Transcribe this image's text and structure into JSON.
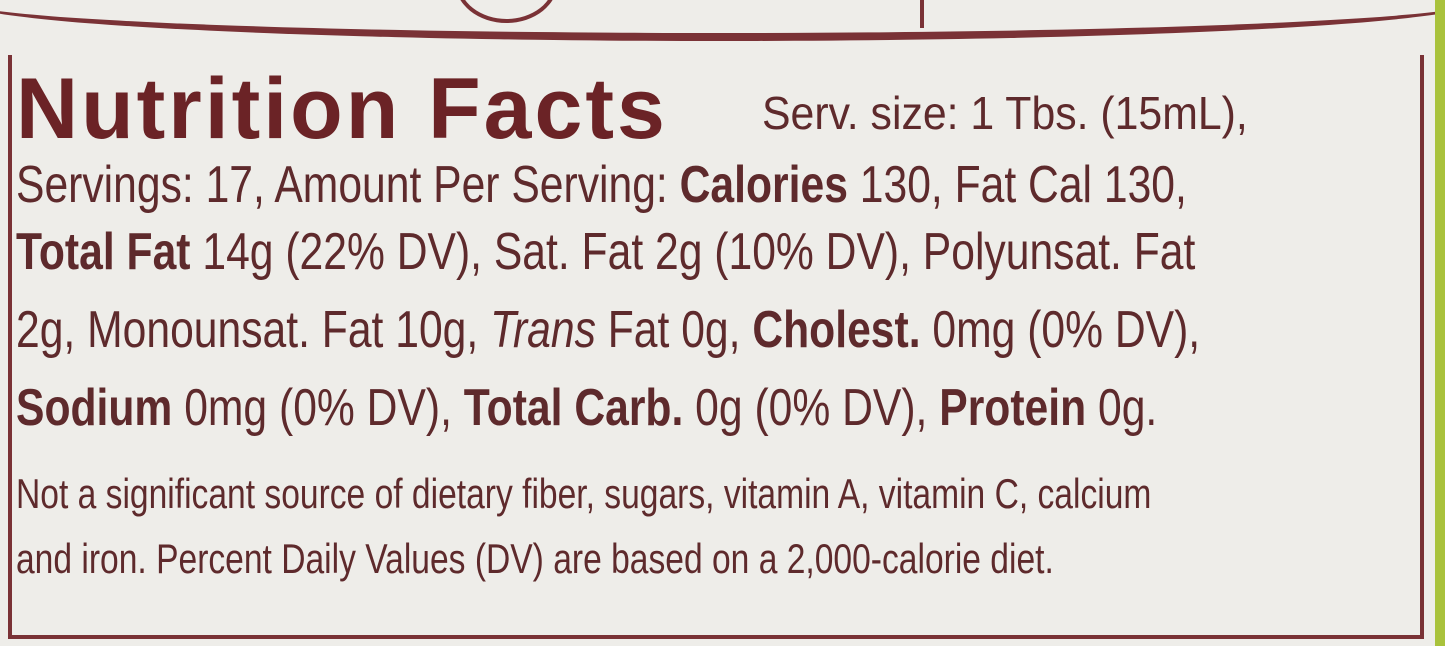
{
  "title": "Nutrition Facts",
  "serving_size": "Serv. size: 1 Tbs. (15mL),",
  "line1": {
    "servings": "Servings: 17, Amount Per Serving: ",
    "calories_label": "Calories",
    "calories_rest": " 130, Fat Cal 130,"
  },
  "line2": {
    "total_fat_label": "Total Fat",
    "total_fat_rest": " 14g (22% DV), Sat. Fat 2g (10% DV), Polyunsat. Fat"
  },
  "line3": {
    "pre": "2g, Monounsat. Fat 10g, ",
    "trans": "Trans",
    "mid": " Fat 0g, ",
    "cholest_label": "Cholest.",
    "cholest_rest": " 0mg (0% DV),"
  },
  "line4": {
    "sodium_label": "Sodium",
    "sodium_rest": " 0mg (0% DV), ",
    "carb_label": "Total Carb.",
    "carb_rest": " 0g (0% DV), ",
    "protein_label": "Protein",
    "protein_rest": " 0g."
  },
  "footnote1": "Not a significant source of dietary fiber, sugars, vitamin A, vitamin C, calcium",
  "footnote2": "and iron. Percent Daily Values (DV) are based on a 2,000-calorie diet.",
  "colors": {
    "ink": "#5e2a2c",
    "border": "#7a3236",
    "background": "#eeede9",
    "edge": "#a9c23c"
  }
}
